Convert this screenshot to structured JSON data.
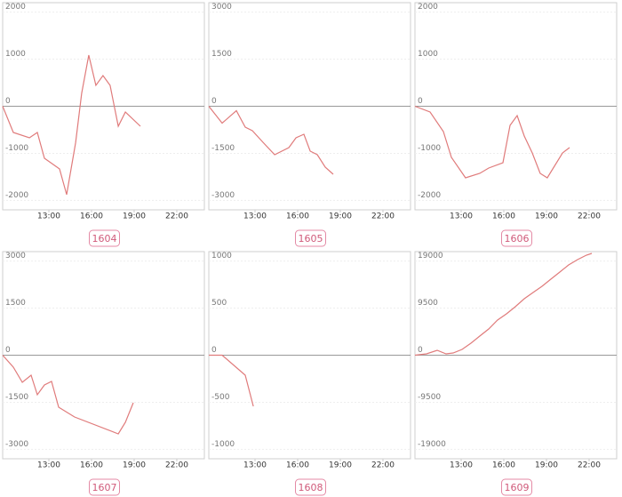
{
  "chart_data": [
    {
      "type": "line",
      "title": "1604",
      "color": "#e07b7b",
      "x": [
        9.75,
        10.5,
        11.63,
        12.19,
        12.69,
        13.75,
        14.25,
        14.88,
        15.31,
        15.81,
        16.31,
        16.81,
        17.31,
        17.88,
        18.38,
        19.44
      ],
      "values": [
        0,
        -557,
        -670,
        -557,
        -1104,
        -1331,
        -1878,
        -774,
        274,
        1086,
        444,
        652,
        444,
        -425,
        -123,
        -425
      ],
      "xlim": [
        9.75,
        23.94
      ],
      "xticks": [
        {
          "value": 13,
          "label": "13:00"
        },
        {
          "value": 16,
          "label": "16:00"
        },
        {
          "value": 19,
          "label": "19:00"
        },
        {
          "value": 22,
          "label": "22:00"
        }
      ],
      "ylim": [
        -2200,
        2200
      ],
      "yticks": [
        2000,
        1000,
        0,
        -1000,
        -2000
      ]
    },
    {
      "type": "line",
      "title": "1605",
      "color": "#e07b7b",
      "x": [
        9.75,
        10.69,
        11.69,
        12.31,
        12.81,
        13.56,
        14.38,
        15.38,
        15.88,
        16.44,
        16.88,
        17.38,
        17.94,
        18.5
      ],
      "values": [
        0,
        -538,
        -142,
        -666,
        -779,
        -1147,
        -1544,
        -1317,
        -1006,
        -892,
        -1431,
        -1544,
        -1941,
        -2167
      ],
      "xlim": [
        9.75,
        23.94
      ],
      "xticks": [
        {
          "value": 13,
          "label": "13:00"
        },
        {
          "value": 16,
          "label": "16:00"
        },
        {
          "value": 19,
          "label": "19:00"
        },
        {
          "value": 22,
          "label": "22:00"
        }
      ],
      "ylim": [
        -3300,
        3300
      ],
      "yticks": [
        3000,
        1500,
        0,
        -1500,
        -3000
      ]
    },
    {
      "type": "line",
      "title": "1606",
      "color": "#e07b7b",
      "x": [
        9.75,
        10.81,
        11.75,
        12.31,
        13.31,
        14.31,
        14.94,
        15.94,
        16.44,
        16.94,
        17.44,
        18,
        18.56,
        19.06,
        20.13,
        20.63
      ],
      "values": [
        0,
        -123,
        -538,
        -1086,
        -1520,
        -1425,
        -1312,
        -1199,
        -406,
        -198,
        -632,
        -991,
        -1425,
        -1520,
        -991,
        -878
      ],
      "xlim": [
        9.75,
        23.94
      ],
      "xticks": [
        {
          "value": 13,
          "label": "13:00"
        },
        {
          "value": 16,
          "label": "16:00"
        },
        {
          "value": 19,
          "label": "19:00"
        },
        {
          "value": 22,
          "label": "22:00"
        }
      ],
      "ylim": [
        -2200,
        2200
      ],
      "yticks": [
        2000,
        1000,
        0,
        -1000,
        -2000
      ]
    },
    {
      "type": "line",
      "title": "1607",
      "color": "#e07b7b",
      "x": [
        9.75,
        10.5,
        11.13,
        11.75,
        12.19,
        12.69,
        13.19,
        13.69,
        14.81,
        17.88,
        18.38,
        18.94
      ],
      "values": [
        0,
        -382,
        -864,
        -637,
        -1261,
        -949,
        -836,
        -1657,
        -1969,
        -2507,
        -2139,
        -1516
      ],
      "xlim": [
        9.75,
        23.94
      ],
      "xticks": [
        {
          "value": 13,
          "label": "13:00"
        },
        {
          "value": 16,
          "label": "16:00"
        },
        {
          "value": 19,
          "label": "19:00"
        },
        {
          "value": 22,
          "label": "22:00"
        }
      ],
      "ylim": [
        -3300,
        3300
      ],
      "yticks": [
        3000,
        1500,
        0,
        -1500,
        -3000
      ]
    },
    {
      "type": "line",
      "title": "1608",
      "color": "#e07b7b",
      "x": [
        9.75,
        10.69,
        12.31,
        12.88
      ],
      "values": [
        0,
        0,
        -212,
        -543
      ],
      "xlim": [
        9.75,
        23.94
      ],
      "xticks": [
        {
          "value": 13,
          "label": "13:00"
        },
        {
          "value": 16,
          "label": "16:00"
        },
        {
          "value": 19,
          "label": "19:00"
        },
        {
          "value": 22,
          "label": "22:00"
        }
      ],
      "ylim": [
        -1100,
        1100
      ],
      "yticks": [
        1000,
        500,
        0,
        -500,
        -1000
      ]
    },
    {
      "type": "line",
      "title": "1609",
      "color": "#e07b7b",
      "x": [
        9.75,
        10.56,
        11.31,
        11.94,
        12.44,
        13.06,
        13.69,
        14.31,
        14.94,
        15.56,
        16.19,
        16.81,
        17.44,
        18.06,
        18.69,
        19.31,
        19.94,
        20.56,
        21.19,
        21.81,
        22.19
      ],
      "values": [
        0,
        269,
        987,
        269,
        449,
        1166,
        2422,
        3857,
        5293,
        7087,
        8343,
        9778,
        11393,
        12649,
        13904,
        15339,
        16775,
        18210,
        19287,
        20184,
        20542
      ],
      "xlim": [
        9.75,
        23.94
      ],
      "xticks": [
        {
          "value": 13,
          "label": "13:00"
        },
        {
          "value": 16,
          "label": "16:00"
        },
        {
          "value": 19,
          "label": "19:00"
        },
        {
          "value": 22,
          "label": "22:00"
        }
      ],
      "ylim": [
        -20900,
        20900
      ],
      "yticks": [
        19000,
        9500,
        0,
        -9500,
        -19000
      ]
    }
  ]
}
